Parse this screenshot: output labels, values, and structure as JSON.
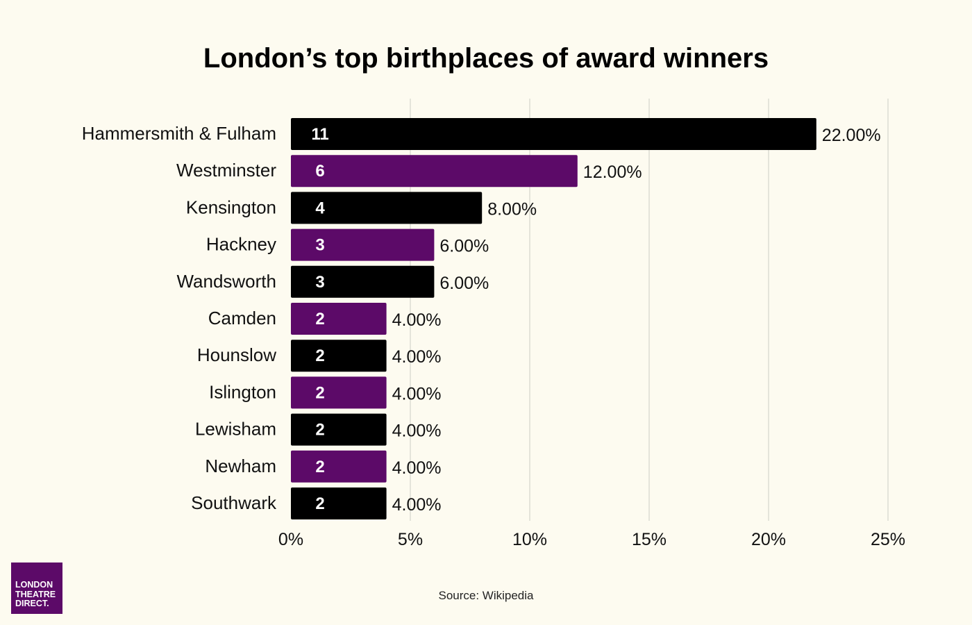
{
  "chart_data": {
    "type": "bar",
    "orientation": "horizontal",
    "title": "London’s top birthplaces of award winners",
    "categories": [
      "Hammersmith & Fulham",
      "Westminster",
      "Kensington",
      "Hackney",
      "Wandsworth",
      "Camden",
      "Hounslow",
      "Islington",
      "Lewisham",
      "Newham",
      "Southwark"
    ],
    "counts": [
      "11",
      "6",
      "4",
      "3",
      "3",
      "2",
      "2",
      "2",
      "2",
      "2",
      "2"
    ],
    "values": [
      22,
      12,
      8,
      6,
      6,
      4,
      4,
      4,
      4,
      4,
      4
    ],
    "value_labels": [
      "22.00%",
      "12.00%",
      "8.00%",
      "6.00%",
      "6.00%",
      "4.00%",
      "4.00%",
      "4.00%",
      "4.00%",
      "4.00%",
      "4.00%"
    ],
    "xlim": [
      0,
      25
    ],
    "xticks": [
      0,
      5,
      10,
      15,
      20,
      25
    ],
    "xtick_labels": [
      "0%",
      "5%",
      "10%",
      "15%",
      "20%",
      "25%"
    ],
    "grid": true,
    "bar_colors": [
      "#000000",
      "#5c0a68"
    ]
  },
  "source": "Source: Wikipedia",
  "logo": {
    "lines": [
      "LONDON",
      "THEATRE",
      "DIRECT."
    ],
    "color": "#5c0a68"
  }
}
